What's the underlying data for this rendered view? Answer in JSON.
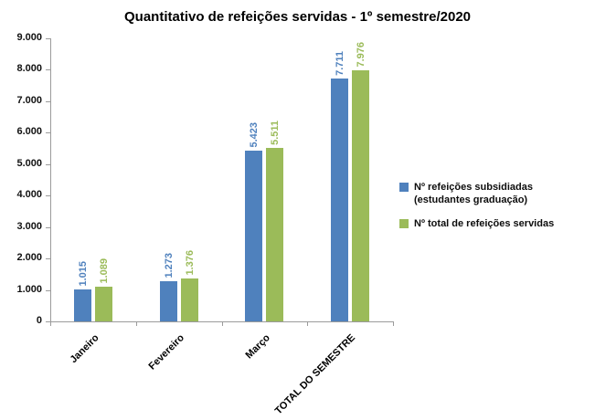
{
  "chart_data": {
    "type": "bar",
    "title": "Quantitativo de refeições servidas - 1º semestre/2020",
    "categories": [
      "Janeiro",
      "Fevereiro",
      "Março",
      "TOTAL DO SEMESTRE"
    ],
    "series": [
      {
        "name": "Nº refeições subsidiadas (estudantes graduação)",
        "color": "#4F81BD",
        "values": [
          1015,
          1273,
          5423,
          7711
        ],
        "labels": [
          "1.015",
          "1.273",
          "5.423",
          "7.711"
        ]
      },
      {
        "name": "Nº total de refeições servidas",
        "color": "#9BBB59",
        "values": [
          1089,
          1376,
          5511,
          7976
        ],
        "labels": [
          "1.089",
          "1.376",
          "5.511",
          "7.976"
        ]
      }
    ],
    "xlabel": "",
    "ylabel": "",
    "ylim": [
      0,
      9000
    ],
    "ytick_step": 1000,
    "yticks": [
      "0",
      "1.000",
      "2.000",
      "3.000",
      "4.000",
      "5.000",
      "6.000",
      "7.000",
      "8.000",
      "9.000"
    ],
    "grid": false,
    "legend_position": "right"
  }
}
